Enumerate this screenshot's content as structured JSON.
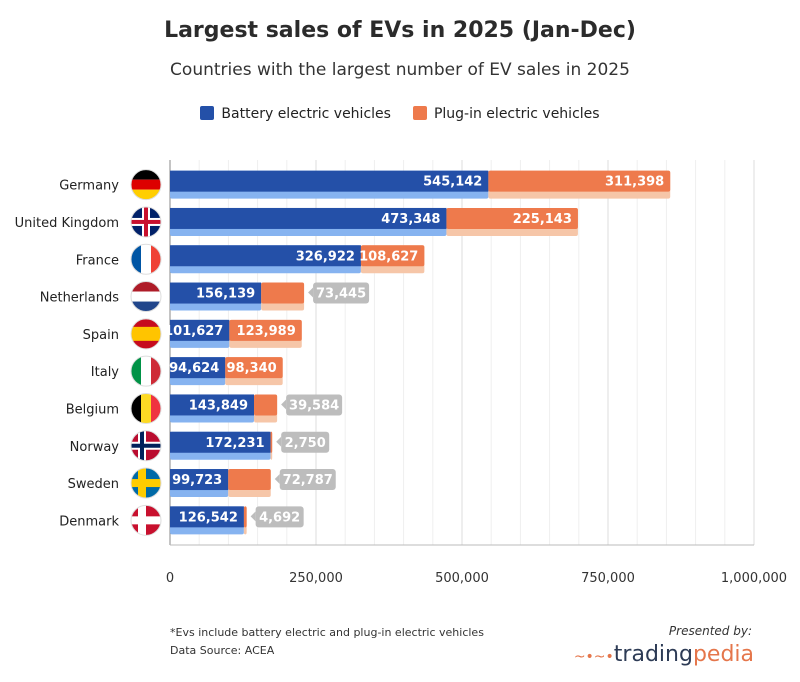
{
  "chart_data": {
    "type": "bar",
    "orientation": "horizontal",
    "stacked": true,
    "title": "Largest sales of EVs in 2025 (Jan-Dec)",
    "subtitle": "Countries with the largest number of EV sales in 2025",
    "categories": [
      "Germany",
      "United Kingdom",
      "France",
      "Netherlands",
      "Spain",
      "Italy",
      "Belgium",
      "Norway",
      "Sweden",
      "Denmark"
    ],
    "series": [
      {
        "name": "Battery electric vehicles",
        "color": "#2450a8",
        "values": [
          545142,
          473348,
          326922,
          156139,
          101627,
          94624,
          143849,
          172231,
          99723,
          126542
        ]
      },
      {
        "name": "Plug-in electric vehicles",
        "color": "#ee7a4c",
        "values": [
          311398,
          225143,
          108627,
          73445,
          123989,
          98340,
          39584,
          2750,
          72787,
          4692
        ]
      }
    ],
    "labels": {
      "bev": [
        "545,142",
        "473,348",
        "326,922",
        "156,139",
        "101,627",
        "94,624",
        "143,849",
        "172,231",
        "99,723",
        "126,542"
      ],
      "phev": [
        "311,398",
        "225,143",
        "108,627",
        "73,445",
        "123,989",
        "98,340",
        "39,584",
        "2,750",
        "72,787",
        "4,692"
      ]
    },
    "xlim": [
      0,
      1000000
    ],
    "xticks": [
      "0",
      "250,000",
      "500,000",
      "750,000",
      "1,000,000"
    ],
    "grid": true,
    "legend_position": "top"
  },
  "footer": {
    "note": "*Evs include battery electric and plug-in electric vehicles",
    "source": "Data Source: ACEA",
    "presented": "Presented by:",
    "logo_a": "trading",
    "logo_b": "pedia"
  }
}
